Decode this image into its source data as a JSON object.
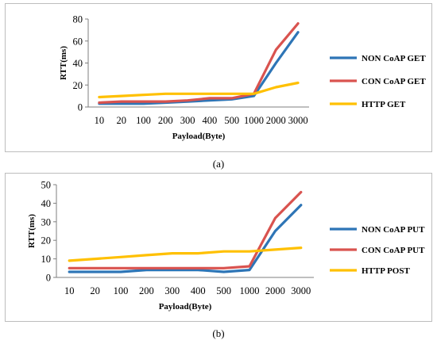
{
  "chart_data": [
    {
      "type": "line",
      "caption": "(a)",
      "xlabel": "Payload(Byte)",
      "ylabel": "RTT(ms)",
      "categories": [
        "10",
        "20",
        "100",
        "200",
        "300",
        "400",
        "500",
        "1000",
        "2000",
        "3000"
      ],
      "ylim": [
        0,
        80
      ],
      "yticks": [
        0,
        20,
        40,
        60,
        80
      ],
      "grid": false,
      "legend_position": "right",
      "series": [
        {
          "name": "NON CoAP GET",
          "color": "#2e75b6",
          "values": [
            3,
            3,
            3,
            4,
            5,
            6,
            7,
            10,
            40,
            68
          ]
        },
        {
          "name": "CON CoAP GET",
          "color": "#d9534f",
          "values": [
            4,
            5,
            5,
            5,
            6,
            8,
            8,
            12,
            52,
            76
          ]
        },
        {
          "name": "HTTP GET",
          "color": "#ffc000",
          "values": [
            9,
            10,
            11,
            12,
            12,
            12,
            12,
            12,
            18,
            22
          ]
        }
      ]
    },
    {
      "type": "line",
      "caption": "(b)",
      "xlabel": "Payload(Byte)",
      "ylabel": "RTT(ms)",
      "categories": [
        "10",
        "20",
        "100",
        "200",
        "300",
        "400",
        "500",
        "1000",
        "2000",
        "3000"
      ],
      "ylim": [
        0,
        50
      ],
      "yticks": [
        0,
        10,
        20,
        30,
        40,
        50
      ],
      "grid": false,
      "legend_position": "right",
      "series": [
        {
          "name": "NON CoAP PUT",
          "color": "#2e75b6",
          "values": [
            3,
            3,
            3,
            4,
            4,
            4,
            3,
            4,
            25,
            39
          ]
        },
        {
          "name": "CON CoAP PUT",
          "color": "#d9534f",
          "values": [
            5,
            5,
            5,
            5,
            5,
            5,
            5,
            6,
            32,
            46
          ]
        },
        {
          "name": "HTTP POST",
          "color": "#ffc000",
          "values": [
            9,
            10,
            11,
            12,
            13,
            13,
            14,
            14,
            15,
            16
          ]
        }
      ]
    }
  ]
}
